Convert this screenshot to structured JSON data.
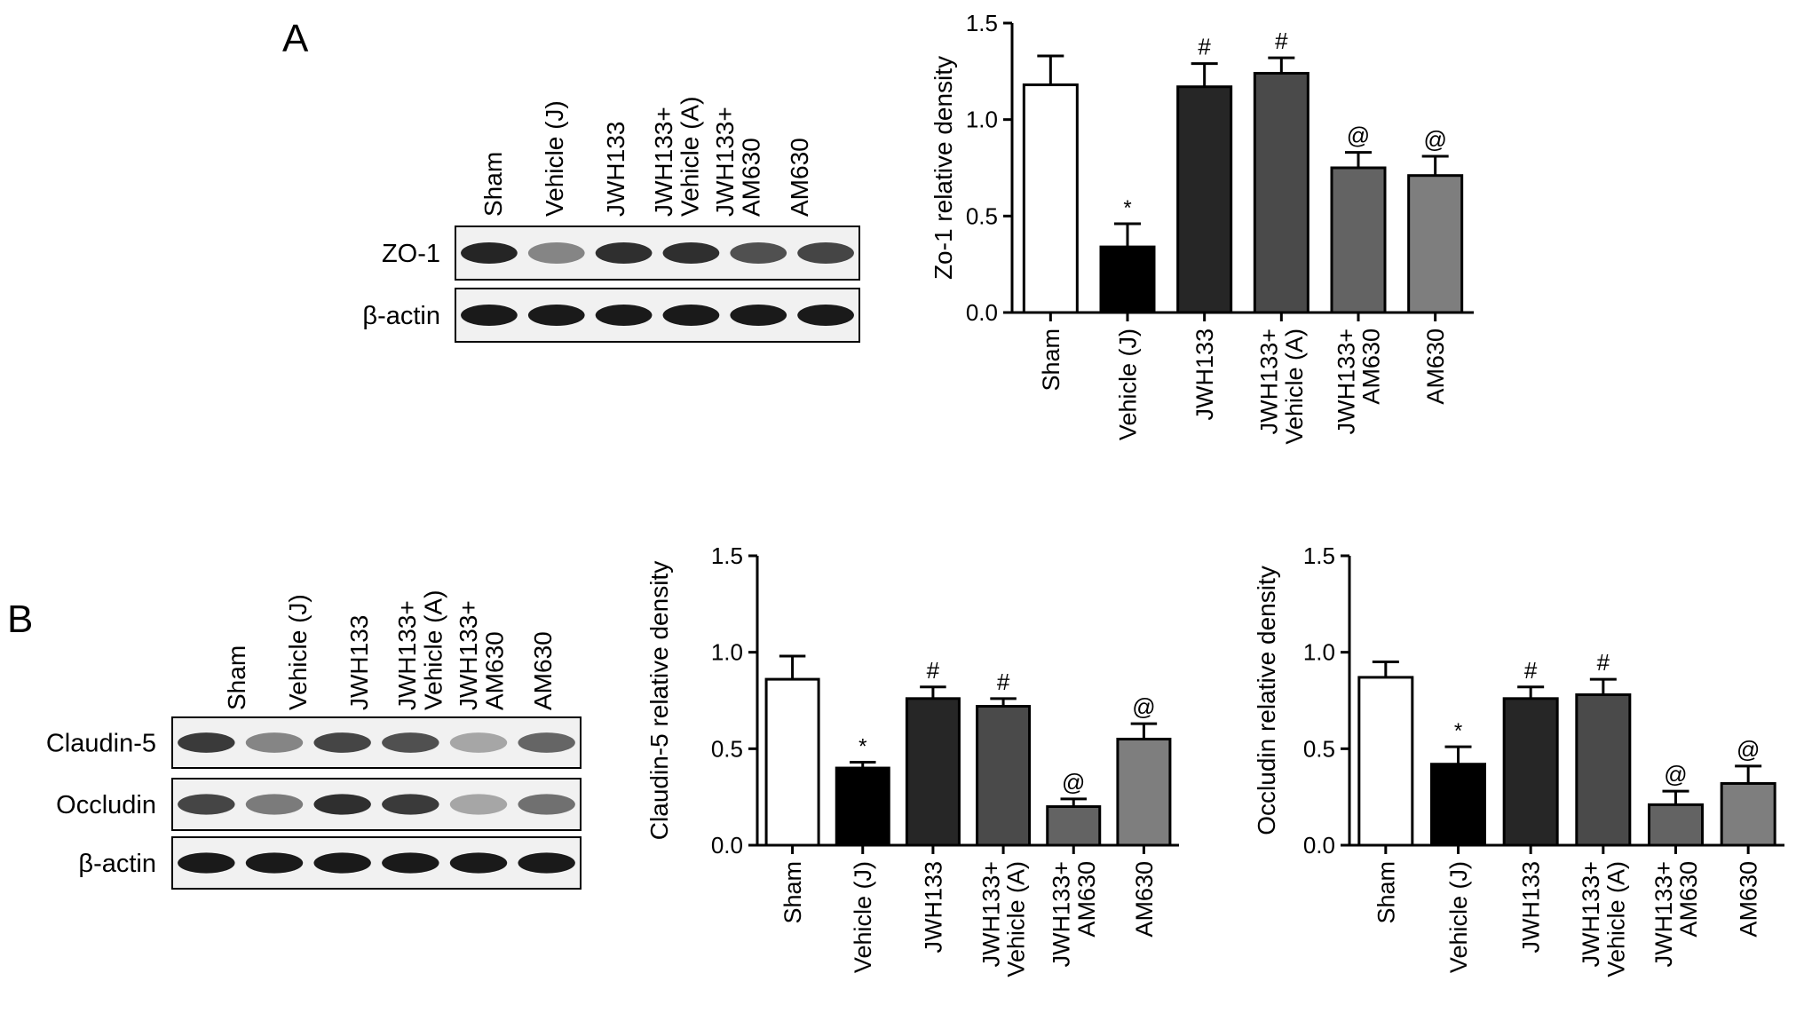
{
  "panels": [
    {
      "letter": "A",
      "blot": {
        "lanes": [
          "Sham",
          "Vehicle (J)",
          "JWH133",
          "JWH133+\nVehicle (A)",
          "JWH133+\nAM630",
          "AM630"
        ],
        "rows": [
          {
            "label": "ZO-1",
            "band_intensity": [
              0.9,
              0.45,
              0.85,
              0.85,
              0.7,
              0.75
            ]
          },
          {
            "label": "β-actin",
            "band_intensity": [
              0.95,
              0.95,
              0.95,
              0.95,
              0.95,
              0.95
            ]
          }
        ]
      }
    },
    {
      "letter": "B",
      "blot": {
        "lanes": [
          "Sham",
          "Vehicle (J)",
          "JWH133",
          "JWH133+\nVehicle (A)",
          "JWH133+\nAM630",
          "AM630"
        ],
        "rows": [
          {
            "label": "Claudin-5",
            "band_intensity": [
              0.8,
              0.45,
              0.75,
              0.7,
              0.3,
              0.6
            ]
          },
          {
            "label": "Occludin",
            "band_intensity": [
              0.75,
              0.5,
              0.85,
              0.8,
              0.3,
              0.55
            ]
          },
          {
            "label": "β-actin",
            "band_intensity": [
              0.95,
              0.95,
              0.95,
              0.95,
              0.95,
              0.95
            ]
          }
        ]
      }
    }
  ],
  "chart_data": [
    {
      "type": "bar",
      "panel": "A",
      "categories": [
        "Sham",
        "Vehicle (J)",
        "JWH133",
        "JWH133+\nVehicle (A)",
        "JWH133+\nAM630",
        "AM630"
      ],
      "values": [
        1.18,
        0.34,
        1.17,
        1.24,
        0.75,
        0.71
      ],
      "errors": [
        0.15,
        0.12,
        0.12,
        0.08,
        0.08,
        0.1
      ],
      "annotations": [
        "",
        "*",
        "#",
        "#",
        "@",
        "@"
      ],
      "bar_colors": [
        "#ffffff",
        "#000000",
        "#262626",
        "#4a4a4a",
        "#636363",
        "#7e7e7e"
      ],
      "ylabel": "Zo-1 relative density",
      "ylim": [
        0,
        1.5
      ],
      "yticks": [
        "0.0",
        "0.5",
        "1.0",
        "1.5"
      ]
    },
    {
      "type": "bar",
      "panel": "B",
      "categories": [
        "Sham",
        "Vehicle (J)",
        "JWH133",
        "JWH133+\nVehicle (A)",
        "JWH133+\nAM630",
        "AM630"
      ],
      "values": [
        0.86,
        0.4,
        0.76,
        0.72,
        0.2,
        0.55
      ],
      "errors": [
        0.12,
        0.03,
        0.06,
        0.04,
        0.04,
        0.08
      ],
      "annotations": [
        "",
        "*",
        "#",
        "#",
        "@",
        "@"
      ],
      "bar_colors": [
        "#ffffff",
        "#000000",
        "#262626",
        "#4a4a4a",
        "#636363",
        "#7e7e7e"
      ],
      "ylabel": "Claudin-5 relative density",
      "ylim": [
        0,
        1.5
      ],
      "yticks": [
        "0.0",
        "0.5",
        "1.0",
        "1.5"
      ]
    },
    {
      "type": "bar",
      "panel": "B",
      "categories": [
        "Sham",
        "Vehicle (J)",
        "JWH133",
        "JWH133+\nVehicle (A)",
        "JWH133+\nAM630",
        "AM630"
      ],
      "values": [
        0.87,
        0.42,
        0.76,
        0.78,
        0.21,
        0.32
      ],
      "errors": [
        0.08,
        0.09,
        0.06,
        0.08,
        0.07,
        0.09
      ],
      "annotations": [
        "",
        "*",
        "#",
        "#",
        "@",
        "@"
      ],
      "bar_colors": [
        "#ffffff",
        "#000000",
        "#262626",
        "#4a4a4a",
        "#636363",
        "#7e7e7e"
      ],
      "ylabel": "Occludin relative density",
      "ylim": [
        0,
        1.5
      ],
      "yticks": [
        "0.0",
        "0.5",
        "1.0",
        "1.5"
      ]
    }
  ]
}
